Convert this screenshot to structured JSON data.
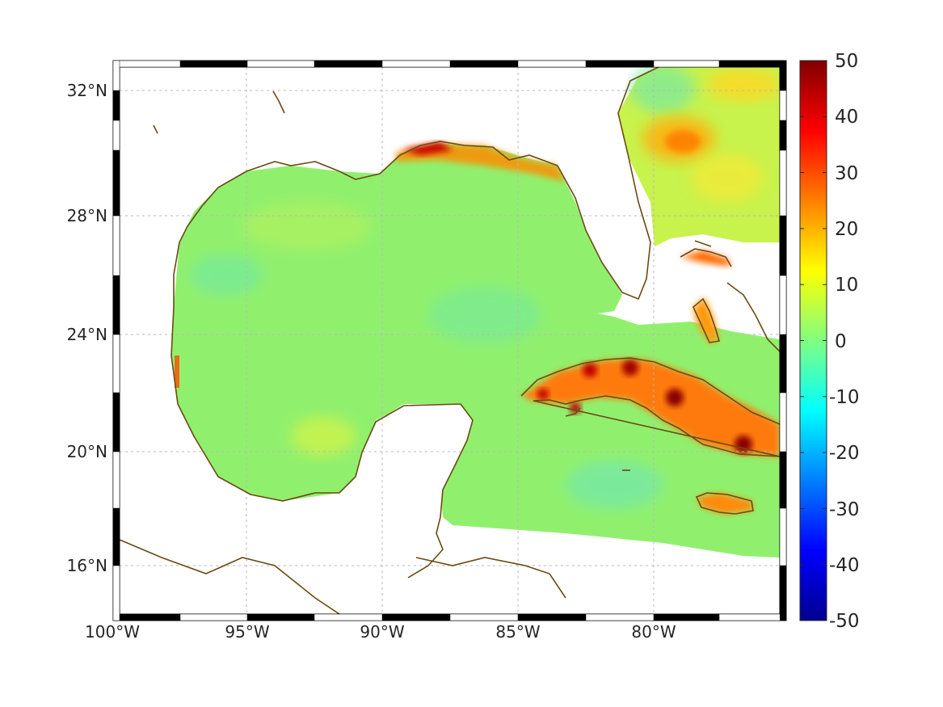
{
  "map": {
    "lon_labels": [
      "100°W",
      "95°W",
      "90°W",
      "85°W",
      "80°W"
    ],
    "lat_labels": [
      "32°N",
      "28°N",
      "24°N",
      "20°N",
      "16°N"
    ]
  },
  "colorbar": {
    "ticks": [
      "50",
      "40",
      "30",
      "20",
      "10",
      "0",
      "-10",
      "-20",
      "-30",
      "-40",
      "-50"
    ],
    "range": [
      -50,
      50
    ],
    "colormap": "jet",
    "colors": [
      "#00008f",
      "#0000ff",
      "#00ffff",
      "#ffff00",
      "#ff0000",
      "#800000"
    ]
  },
  "style": {
    "coastline_color": "#6b4a12",
    "ocean_field_color": "#8cf26e",
    "grid": "dotted"
  }
}
